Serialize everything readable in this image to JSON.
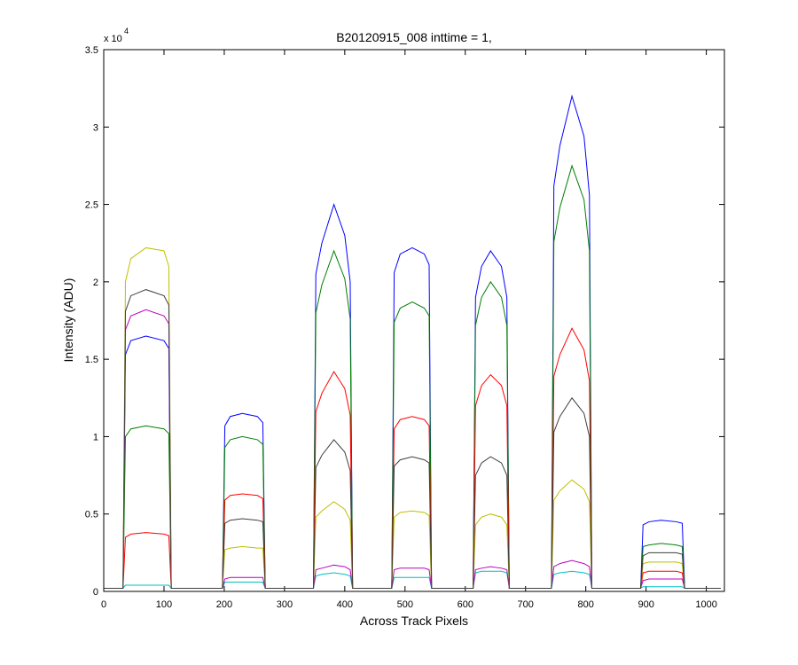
{
  "chart_data": {
    "type": "line",
    "title": "B20120915_008 inttime = 1,",
    "xlabel": "Across Track Pixels",
    "ylabel": "Intensity (ADU)",
    "y_multiplier": "x 10",
    "y_multiplier_exponent": "4",
    "xlim": [
      0,
      1030
    ],
    "ylim": [
      0,
      3.5
    ],
    "xticks": [
      0,
      100,
      200,
      300,
      400,
      500,
      600,
      700,
      800,
      900,
      1000
    ],
    "yticks": [
      0,
      0.5,
      1,
      1.5,
      2,
      2.5,
      3,
      3.5
    ],
    "grid": false,
    "x": [
      0,
      32,
      36,
      45,
      70,
      100,
      108,
      112,
      197,
      201,
      210,
      230,
      255,
      264,
      268,
      348,
      352,
      362,
      382,
      400,
      409,
      413,
      478,
      482,
      492,
      512,
      532,
      540,
      544,
      613,
      617,
      627,
      642,
      660,
      669,
      673,
      743,
      747,
      757,
      777,
      797,
      806,
      810,
      891,
      895,
      905,
      925,
      950,
      960,
      964,
      1024
    ],
    "series": [
      {
        "color": "#0000ff",
        "values": [
          0.02,
          0.02,
          1.53,
          1.62,
          1.65,
          1.62,
          1.57,
          0.02,
          0.02,
          1.07,
          1.13,
          1.15,
          1.13,
          1.09,
          0.02,
          0.02,
          2.05,
          2.25,
          2.5,
          2.3,
          2.0,
          0.02,
          0.02,
          2.06,
          2.18,
          2.22,
          2.18,
          2.11,
          0.02,
          0.02,
          1.9,
          2.1,
          2.2,
          2.1,
          1.9,
          0.02,
          0.02,
          2.62,
          2.88,
          3.2,
          2.94,
          2.56,
          0.02,
          0.02,
          0.43,
          0.45,
          0.46,
          0.45,
          0.44,
          0.02,
          0.02
        ]
      },
      {
        "color": "#007f00",
        "values": [
          0.02,
          0.02,
          1.0,
          1.05,
          1.07,
          1.05,
          1.02,
          0.02,
          0.02,
          0.93,
          0.98,
          1.0,
          0.98,
          0.95,
          0.02,
          0.02,
          1.8,
          1.98,
          2.2,
          2.02,
          1.76,
          0.02,
          0.02,
          1.74,
          1.83,
          1.87,
          1.83,
          1.78,
          0.02,
          0.02,
          1.72,
          1.9,
          2.0,
          1.9,
          1.72,
          0.02,
          0.02,
          2.26,
          2.48,
          2.75,
          2.53,
          2.2,
          0.02,
          0.02,
          0.29,
          0.3,
          0.31,
          0.3,
          0.29,
          0.02,
          0.02
        ]
      },
      {
        "color": "#ff0000",
        "values": [
          0.02,
          0.02,
          0.35,
          0.37,
          0.38,
          0.37,
          0.36,
          0.02,
          0.02,
          0.59,
          0.62,
          0.63,
          0.62,
          0.6,
          0.02,
          0.02,
          1.16,
          1.28,
          1.42,
          1.31,
          1.14,
          0.02,
          0.02,
          1.05,
          1.11,
          1.13,
          1.11,
          1.07,
          0.02,
          0.02,
          1.2,
          1.33,
          1.4,
          1.33,
          1.2,
          0.02,
          0.02,
          1.39,
          1.53,
          1.7,
          1.56,
          1.36,
          0.02,
          0.02,
          0.12,
          0.13,
          0.13,
          0.13,
          0.12,
          0.02,
          0.02
        ]
      },
      {
        "color": "#00bfbf",
        "values": [
          0.02,
          0.02,
          0.04,
          0.04,
          0.04,
          0.04,
          0.04,
          0.02,
          0.02,
          0.06,
          0.06,
          0.06,
          0.06,
          0.06,
          0.02,
          0.02,
          0.1,
          0.11,
          0.12,
          0.11,
          0.1,
          0.02,
          0.02,
          0.09,
          0.09,
          0.09,
          0.09,
          0.09,
          0.02,
          0.02,
          0.12,
          0.13,
          0.13,
          0.13,
          0.12,
          0.02,
          0.02,
          0.11,
          0.12,
          0.13,
          0.12,
          0.11,
          0.02,
          0.02,
          0.03,
          0.03,
          0.03,
          0.03,
          0.03,
          0.02,
          0.02
        ]
      },
      {
        "color": "#bf00bf",
        "values": [
          0.02,
          0.02,
          1.69,
          1.78,
          1.82,
          1.78,
          1.73,
          0.02,
          0.02,
          0.08,
          0.09,
          0.09,
          0.09,
          0.09,
          0.02,
          0.02,
          0.14,
          0.15,
          0.17,
          0.16,
          0.14,
          0.02,
          0.02,
          0.14,
          0.15,
          0.15,
          0.15,
          0.14,
          0.02,
          0.02,
          0.14,
          0.15,
          0.16,
          0.15,
          0.14,
          0.02,
          0.02,
          0.16,
          0.18,
          0.2,
          0.18,
          0.16,
          0.02,
          0.02,
          0.07,
          0.08,
          0.08,
          0.08,
          0.08,
          0.02,
          0.02
        ]
      },
      {
        "color": "#bfbf00",
        "values": [
          0.02,
          0.02,
          2.0,
          2.15,
          2.22,
          2.2,
          2.1,
          0.02,
          0.02,
          0.27,
          0.28,
          0.29,
          0.28,
          0.28,
          0.02,
          0.02,
          0.48,
          0.52,
          0.58,
          0.53,
          0.46,
          0.02,
          0.02,
          0.48,
          0.51,
          0.52,
          0.51,
          0.49,
          0.02,
          0.02,
          0.43,
          0.48,
          0.5,
          0.48,
          0.43,
          0.02,
          0.02,
          0.59,
          0.65,
          0.72,
          0.66,
          0.58,
          0.02,
          0.02,
          0.18,
          0.19,
          0.19,
          0.19,
          0.18,
          0.02,
          0.02
        ]
      },
      {
        "color": "#3f3f3f",
        "values": [
          0.02,
          0.02,
          1.81,
          1.91,
          1.95,
          1.91,
          1.85,
          0.02,
          0.02,
          0.44,
          0.46,
          0.47,
          0.46,
          0.45,
          0.02,
          0.02,
          0.8,
          0.88,
          0.98,
          0.9,
          0.78,
          0.02,
          0.02,
          0.81,
          0.85,
          0.87,
          0.85,
          0.83,
          0.02,
          0.02,
          0.75,
          0.83,
          0.87,
          0.83,
          0.75,
          0.02,
          0.02,
          1.03,
          1.13,
          1.25,
          1.15,
          1.0,
          0.02,
          0.02,
          0.23,
          0.25,
          0.25,
          0.25,
          0.24,
          0.02,
          0.02
        ]
      }
    ]
  }
}
